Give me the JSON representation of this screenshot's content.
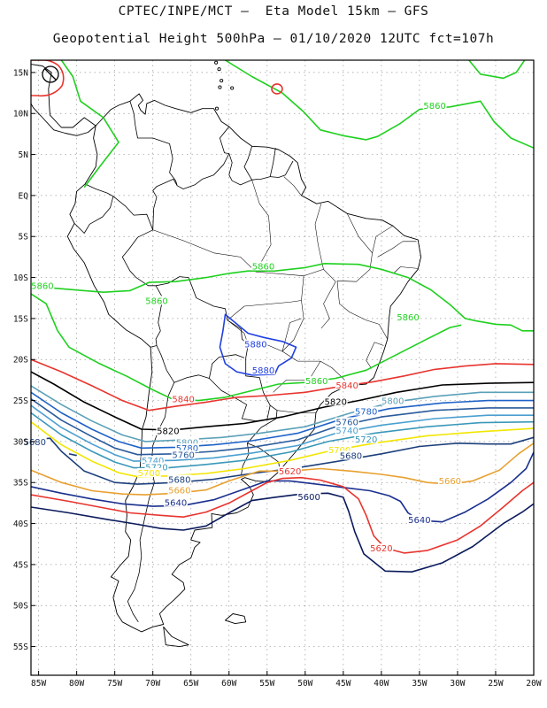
{
  "title_line1": "CPTEC/INPE/MCT –  Eta Model 15km – GFS",
  "title_line2": "Geopotential Height 500hPa – 01/10/2020 12UTC fct=107h",
  "lat_labels": [
    "15N",
    "10N",
    "5N",
    "EQ",
    "5S",
    "10S",
    "15S",
    "20S",
    "25S",
    "30S",
    "35S",
    "40S",
    "45S",
    "50S",
    "55S"
  ],
  "lon_labels": [
    "85W",
    "80W",
    "75W",
    "70W",
    "65W",
    "60W",
    "55W",
    "50W",
    "45W",
    "40W",
    "35W",
    "30W",
    "25W",
    "20W"
  ],
  "extent": {
    "lon_min": -86,
    "lon_max": -20,
    "lat_min": -58.5,
    "lat_max": 16.5
  },
  "contour_colors": {
    "5600": "#0a1a5c",
    "5620": "#e8342e",
    "5640": "#1a2f8f",
    "5660": "#e8a030",
    "5680": "#1c3f7c",
    "5700": "#f2e600",
    "5720": "#3a98b8",
    "5740": "#4a9fd0",
    "5760": "#2a5a9c",
    "5780": "#1f62c8",
    "5800": "#5aa0b8",
    "5820": "#000000",
    "5840": "#e8342e",
    "5860": "#1fd01f",
    "5880": "#2040e0"
  },
  "contour_labels": [
    {
      "text": "5860",
      "lon": -33.0,
      "lat": 10.8,
      "color": "#1fd01f"
    },
    {
      "text": "5860",
      "lon": -55.5,
      "lat": -8.8,
      "color": "#1fd01f"
    },
    {
      "text": "5860",
      "lon": -84.5,
      "lat": -11.2,
      "color": "#1fd01f"
    },
    {
      "text": "5860",
      "lon": -69.5,
      "lat": -13.0,
      "color": "#1fd01f"
    },
    {
      "text": "5860",
      "lon": -36.5,
      "lat": -15.0,
      "color": "#1fd01f"
    },
    {
      "text": "5860",
      "lon": -48.5,
      "lat": -22.8,
      "color": "#1fd01f"
    },
    {
      "text": "5880",
      "lon": -56.5,
      "lat": -18.3,
      "color": "#2040e0"
    },
    {
      "text": "5880",
      "lon": -55.5,
      "lat": -21.5,
      "color": "#2040e0"
    },
    {
      "text": "5840",
      "lon": -44.5,
      "lat": -23.3,
      "color": "#e8342e"
    },
    {
      "text": "5840",
      "lon": -66.0,
      "lat": -25.0,
      "color": "#e8342e"
    },
    {
      "text": "5820",
      "lon": -46.0,
      "lat": -25.3,
      "color": "#000000"
    },
    {
      "text": "5820",
      "lon": -68.0,
      "lat": -28.9,
      "color": "#000000"
    },
    {
      "text": "5800",
      "lon": -38.5,
      "lat": -25.2,
      "color": "#5aa0b8"
    },
    {
      "text": "5780",
      "lon": -42.0,
      "lat": -26.5,
      "color": "#1f62c8"
    },
    {
      "text": "5760",
      "lon": -44.5,
      "lat": -27.8,
      "color": "#2a5a9c"
    },
    {
      "text": "5740",
      "lon": -44.5,
      "lat": -28.8,
      "color": "#4a9fd0"
    },
    {
      "text": "5720",
      "lon": -42.0,
      "lat": -29.9,
      "color": "#3a98b8"
    },
    {
      "text": "5700",
      "lon": -45.5,
      "lat": -31.2,
      "color": "#f2e600"
    },
    {
      "text": "5680",
      "lon": -44.0,
      "lat": -31.9,
      "color": "#1c3f7c"
    },
    {
      "text": "5800",
      "lon": -65.5,
      "lat": -30.3,
      "color": "#5aa0b8"
    },
    {
      "text": "5780",
      "lon": -65.5,
      "lat": -31.0,
      "color": "#1f62c8"
    },
    {
      "text": "5760",
      "lon": -66.0,
      "lat": -31.8,
      "color": "#2a5a9c"
    },
    {
      "text": "5740",
      "lon": -70.0,
      "lat": -32.5,
      "color": "#4a9fd0"
    },
    {
      "text": "5720",
      "lon": -69.5,
      "lat": -33.3,
      "color": "#3a98b8"
    },
    {
      "text": "5700",
      "lon": -70.5,
      "lat": -34.0,
      "color": "#f2e600"
    },
    {
      "text": "5680",
      "lon": -66.5,
      "lat": -34.8,
      "color": "#1c3f7c"
    },
    {
      "text": "5660",
      "lon": -66.5,
      "lat": -36.1,
      "color": "#e8a030"
    },
    {
      "text": "5640",
      "lon": -67.0,
      "lat": -37.6,
      "color": "#1a2f8f"
    },
    {
      "text": "5620",
      "lon": -52.0,
      "lat": -33.8,
      "color": "#e8342e"
    },
    {
      "text": "5600",
      "lon": -49.5,
      "lat": -36.9,
      "color": "#0a1a5c"
    },
    {
      "text": "5660",
      "lon": -31.0,
      "lat": -35.0,
      "color": "#e8a030"
    },
    {
      "text": "5640",
      "lon": -35.0,
      "lat": -39.7,
      "color": "#1a2f8f"
    },
    {
      "text": "5620",
      "lon": -40.0,
      "lat": -43.2,
      "color": "#e8342e"
    },
    {
      "text": "5680",
      "lon": -85.5,
      "lat": -30.2,
      "color": "#1c3f7c"
    }
  ]
}
